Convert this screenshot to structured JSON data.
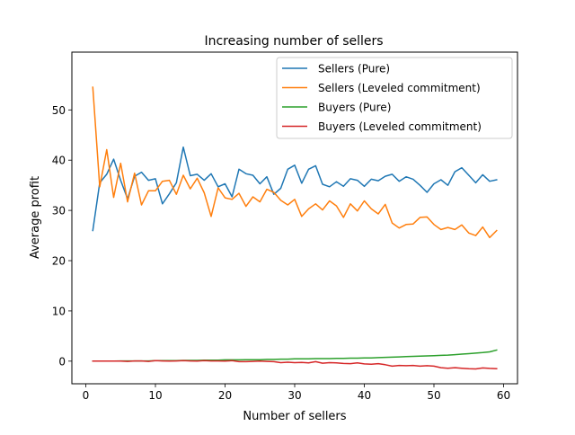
{
  "chart_data": {
    "type": "line",
    "title": "Increasing number of sellers",
    "xlabel": "Number of sellers",
    "ylabel": "Average profit",
    "xlim": [
      -2.0,
      62.0
    ],
    "ylim": [
      -4.5,
      61.5
    ],
    "xticks": [
      0,
      10,
      20,
      30,
      40,
      50,
      60
    ],
    "yticks": [
      0,
      10,
      20,
      30,
      40,
      50
    ],
    "grid": false,
    "legend_position": "top-right",
    "x": [
      1,
      2,
      3,
      4,
      5,
      6,
      7,
      8,
      9,
      10,
      11,
      12,
      13,
      14,
      15,
      16,
      17,
      18,
      19,
      20,
      21,
      22,
      23,
      24,
      25,
      26,
      27,
      28,
      29,
      30,
      31,
      32,
      33,
      34,
      35,
      36,
      37,
      38,
      39,
      40,
      41,
      42,
      43,
      44,
      45,
      46,
      47,
      48,
      49,
      50,
      51,
      52,
      53,
      54,
      55,
      56,
      57,
      58,
      59
    ],
    "series": [
      {
        "name": "Sellers (Pure)",
        "color": "#1f77b4",
        "values": [
          26.0,
          35.5,
          37.2,
          40.2,
          36.0,
          32.3,
          36.8,
          37.6,
          36.0,
          36.3,
          31.3,
          33.3,
          35.5,
          42.6,
          36.9,
          37.2,
          36.0,
          37.3,
          34.7,
          35.3,
          32.7,
          38.2,
          37.3,
          37.0,
          35.3,
          36.7,
          33.2,
          34.4,
          38.2,
          39.0,
          35.4,
          38.2,
          38.9,
          35.2,
          34.7,
          35.7,
          34.8,
          36.3,
          36.0,
          34.8,
          36.2,
          35.9,
          36.8,
          37.2,
          35.8,
          36.7,
          36.2,
          35.0,
          33.6,
          35.3,
          36.1,
          35.0,
          37.7,
          38.5,
          37.0,
          35.5,
          37.1,
          35.8,
          36.1
        ]
      },
      {
        "name": "Sellers (Leveled commitment)",
        "color": "#ff7f0e",
        "values": [
          54.5,
          34.7,
          42.1,
          32.6,
          39.4,
          31.7,
          37.4,
          31.1,
          33.9,
          33.9,
          35.8,
          36.0,
          33.2,
          37.0,
          34.3,
          36.4,
          33.5,
          28.8,
          34.5,
          32.5,
          32.2,
          33.4,
          30.8,
          32.7,
          31.7,
          34.2,
          33.6,
          32.0,
          31.1,
          32.2,
          28.8,
          30.3,
          31.3,
          30.1,
          31.9,
          30.9,
          28.6,
          31.3,
          29.9,
          31.9,
          30.3,
          29.3,
          31.2,
          27.5,
          26.5,
          27.2,
          27.3,
          28.6,
          28.7,
          27.2,
          26.2,
          26.6,
          26.2,
          27.1,
          25.5,
          25.0,
          26.7,
          24.6,
          26.0
        ]
      },
      {
        "name": "Buyers (Pure)",
        "color": "#2ca02c",
        "values": [
          0.0,
          0.0,
          0.0,
          0.0,
          0.05,
          0.05,
          0.05,
          0.05,
          0.05,
          0.1,
          0.1,
          0.1,
          0.1,
          0.15,
          0.15,
          0.15,
          0.2,
          0.2,
          0.2,
          0.25,
          0.25,
          0.25,
          0.3,
          0.3,
          0.3,
          0.35,
          0.35,
          0.4,
          0.4,
          0.45,
          0.45,
          0.45,
          0.5,
          0.5,
          0.5,
          0.55,
          0.55,
          0.6,
          0.6,
          0.65,
          0.65,
          0.7,
          0.75,
          0.8,
          0.85,
          0.9,
          0.95,
          1.0,
          1.05,
          1.1,
          1.15,
          1.2,
          1.3,
          1.4,
          1.5,
          1.6,
          1.7,
          1.85,
          2.2
        ]
      },
      {
        "name": "Buyers (Leveled commitment)",
        "color": "#d62728",
        "values": [
          0.0,
          0.0,
          0.0,
          0.0,
          0.0,
          -0.05,
          0.05,
          0.05,
          -0.05,
          0.1,
          0.05,
          0.0,
          0.05,
          0.1,
          0.05,
          0.0,
          0.1,
          0.05,
          0.05,
          0.0,
          0.1,
          -0.1,
          -0.1,
          -0.05,
          0.0,
          -0.05,
          -0.1,
          -0.3,
          -0.2,
          -0.3,
          -0.25,
          -0.35,
          -0.1,
          -0.4,
          -0.3,
          -0.35,
          -0.45,
          -0.5,
          -0.35,
          -0.55,
          -0.6,
          -0.5,
          -0.7,
          -1.0,
          -0.85,
          -0.9,
          -0.85,
          -1.0,
          -0.9,
          -1.0,
          -1.3,
          -1.4,
          -1.3,
          -1.4,
          -1.5,
          -1.55,
          -1.35,
          -1.45,
          -1.5
        ]
      }
    ]
  }
}
